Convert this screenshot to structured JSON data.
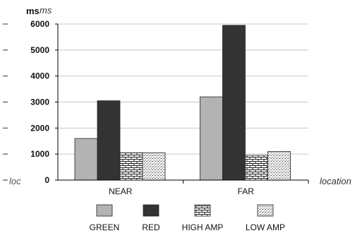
{
  "chart_data": {
    "type": "bar",
    "title": "",
    "ylabel": "ms",
    "ylabel_italic": "ms",
    "xlabel": "location",
    "left_fragment": "loc",
    "categories": [
      "NEAR",
      "FAR"
    ],
    "ylim": [
      0,
      6000
    ],
    "yticks": [
      0,
      1000,
      2000,
      3000,
      4000,
      5000,
      6000
    ],
    "grid": true,
    "legend_position": "bottom",
    "series": [
      {
        "name": "GREEN",
        "values": [
          1600,
          3200
        ],
        "fill": "#b3b3b3",
        "pattern": "solid"
      },
      {
        "name": "RED",
        "values": [
          3050,
          5950
        ],
        "fill": "#333333",
        "pattern": "solid"
      },
      {
        "name": "HIGH AMP",
        "values": [
          1050,
          950
        ],
        "fill": "#ffffff",
        "pattern": "brick"
      },
      {
        "name": "LOW AMP",
        "values": [
          1050,
          1100
        ],
        "fill": "#ffffff",
        "pattern": "dots"
      }
    ]
  }
}
